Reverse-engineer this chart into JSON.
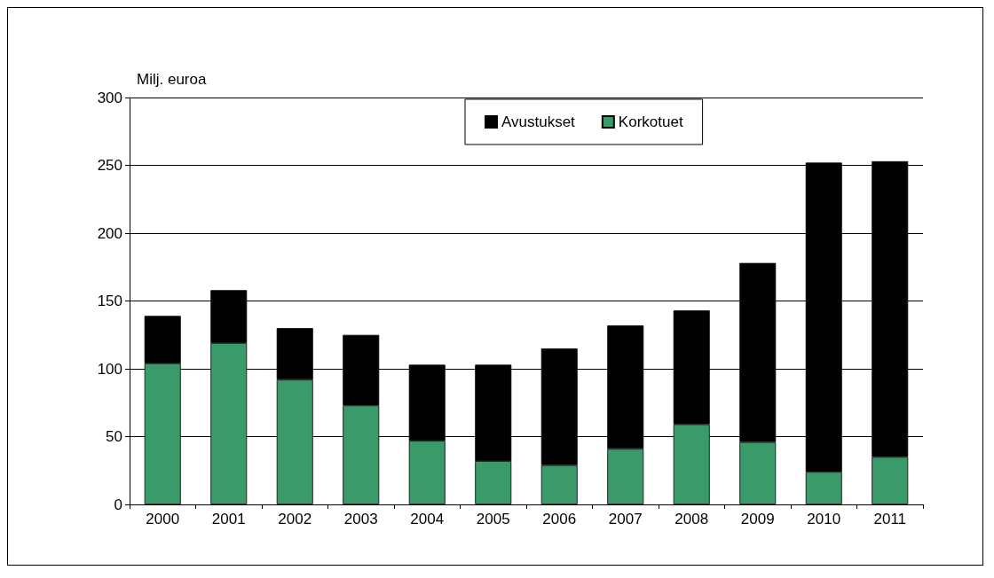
{
  "chart_data": {
    "type": "bar",
    "stacked": true,
    "ylabel": "Milj. euroa",
    "categories": [
      "2000",
      "2001",
      "2002",
      "2003",
      "2004",
      "2005",
      "2006",
      "2007",
      "2008",
      "2009",
      "2010",
      "2011"
    ],
    "series": [
      {
        "name": "Korkotuet",
        "color": "#3a9a6a",
        "values": [
          104,
          119,
          92,
          73,
          47,
          32,
          29,
          41,
          59,
          46,
          24,
          35
        ]
      },
      {
        "name": "Avustukset",
        "color": "#000000",
        "values": [
          35,
          39,
          38,
          52,
          56,
          71,
          86,
          91,
          84,
          132,
          228,
          218
        ]
      }
    ],
    "ylim": [
      0,
      300
    ],
    "yticks": [
      0,
      50,
      100,
      150,
      200,
      250,
      300
    ],
    "grid": "y",
    "legend": "top right"
  }
}
